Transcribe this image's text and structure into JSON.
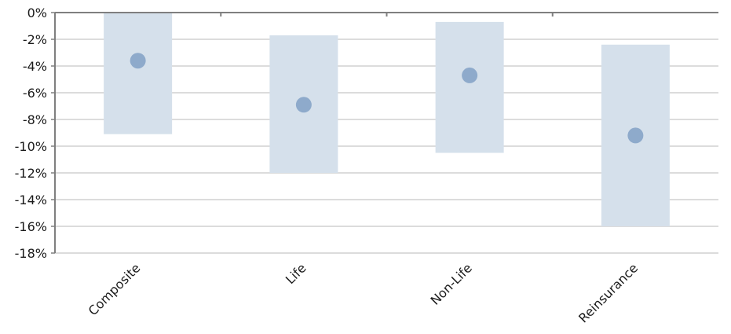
{
  "chart_data": {
    "type": "range-dot",
    "title": "",
    "xlabel": "",
    "ylabel": "",
    "ylim": [
      -18,
      0
    ],
    "yticks": [
      0,
      -2,
      -4,
      -6,
      -8,
      -10,
      -12,
      -14,
      -16,
      -18
    ],
    "ytick_labels": [
      "0%",
      "-2%",
      "-4%",
      "-6%",
      "-8%",
      "-10%",
      "-12%",
      "-14%",
      "-16%",
      "-18%"
    ],
    "grid": true,
    "categories": [
      "Composite",
      "Life",
      "Non-Life",
      "Reinsurance"
    ],
    "range_high": [
      0,
      -1.7,
      -0.7,
      -2.4
    ],
    "range_low": [
      -9.1,
      -12.0,
      -10.5,
      -16.0
    ],
    "values": [
      -3.6,
      -6.9,
      -4.7,
      -9.2
    ],
    "colors": {
      "range": "#d5e0eb",
      "point": "#8eaacb",
      "axis": "#7f7f7f",
      "grid": "#c8c8c8"
    }
  }
}
